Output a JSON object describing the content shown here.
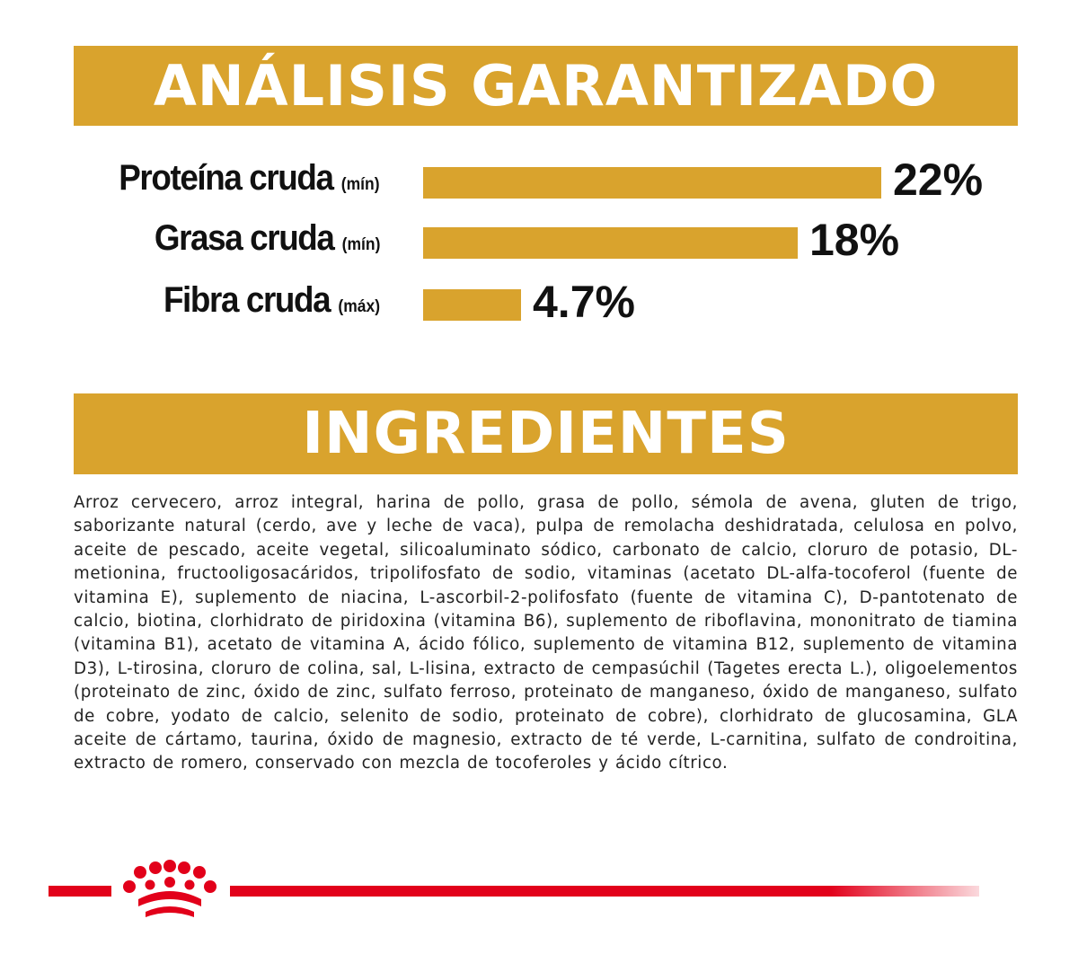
{
  "sections": {
    "analysis_title": "ANÁLISIS GARANTIZADO",
    "ingredients_title": "INGREDIENTES"
  },
  "chart_data": {
    "type": "bar",
    "orientation": "horizontal",
    "categories": [
      "Proteína cruda",
      "Grasa cruda",
      "Fibra cruda"
    ],
    "qualifiers": [
      "(mín)",
      "(mín)",
      "(máx)"
    ],
    "values": [
      22,
      18,
      4.7
    ],
    "value_labels": [
      "22%",
      "18%",
      "4.7%"
    ],
    "xlim": [
      0,
      22
    ],
    "title": "ANÁLISIS GARANTIZADO",
    "xlabel": "",
    "ylabel": "",
    "grid": false,
    "legend": "none",
    "bar_color": "#d9a32d"
  },
  "ingredients_text": "Arroz cervecero, arroz integral, harina de pollo, grasa de pollo, sémola de avena, gluten de trigo, saborizante natural (cerdo, ave y leche de vaca), pulpa de remolacha deshidratada, celulosa en polvo, aceite de pescado, aceite vegetal, silicoaluminato sódico, carbonato de calcio, cloruro de potasio, DL-metionina, fructooligosacáridos, tripolifosfato de sodio, vitaminas (acetato DL-alfa-tocoferol (fuente de vitamina E), suplemento de niacina, L-ascorbil-2-polifosfato (fuente de vitamina C), D-pantotenato de calcio, biotina, clorhidrato de piridoxina (vitamina B6), suplemento de riboflavina, mononitrato de tiamina (vitamina B1), acetato de vitamina A, ácido fólico, suplemento de vitamina B12, suplemento de vitamina D3), L-tirosina, cloruro de colina, sal, L-lisina, extracto de cempasúchil (Tagetes erecta L.), oligoelementos (proteinato de zinc, óxido de zinc, sulfato ferroso, proteinato de manganeso, óxido de manganeso, sulfato de cobre, yodato de calcio, selenito de sodio, proteinato de cobre), clorhidrato de glucosamina, GLA aceite de cártamo, taurina, óxido de magnesio, extracto de té verde, L-carnitina, sulfato de condroitina, extracto de romero, conservado con mezcla de tocoferoles y ácido cítrico.",
  "brand": {
    "logo_icon": "royal-canin-crown-icon",
    "accent_color": "#e2001a"
  }
}
